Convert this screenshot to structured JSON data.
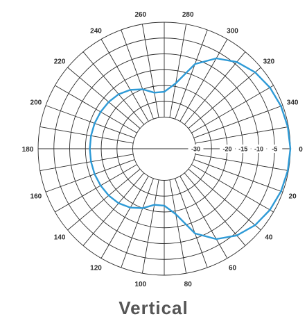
{
  "chart_data": {
    "type": "polar",
    "title": "Vertical",
    "angle_ticks": [
      "0",
      "20",
      "40",
      "60",
      "80",
      "100",
      "120",
      "140",
      "160",
      "180",
      "200",
      "220",
      "240",
      "260",
      "280",
      "300",
      "320",
      "340"
    ],
    "radial_ticks": [
      "-30",
      "-20",
      "-15",
      "-10",
      "-5"
    ],
    "radial_range_db": [
      -40,
      0
    ],
    "grid": true,
    "grid_angle_step_deg": 10,
    "series": [
      {
        "angles_deg": [
          0,
          10,
          20,
          30,
          40,
          50,
          60,
          70,
          80,
          90,
          100,
          110,
          120,
          130,
          140,
          150,
          160,
          170,
          180,
          190,
          200,
          210,
          220,
          230,
          240,
          250,
          260,
          270,
          280,
          290,
          300,
          310,
          320,
          330,
          340,
          350,
          360
        ],
        "values_db": [
          0,
          -0.2,
          -0.6,
          -1.3,
          -2.4,
          -4.2,
          -7,
          -11.5,
          -19,
          -22,
          -22,
          -20,
          -18.5,
          -17.5,
          -17,
          -16.7,
          -16.5,
          -16.4,
          -16.4,
          -16.4,
          -16.5,
          -16.7,
          -17,
          -17.5,
          -18.5,
          -20,
          -22,
          -22,
          -19,
          -11.5,
          -7,
          -4.2,
          -2.4,
          -1.3,
          -0.6,
          -0.2,
          0
        ]
      }
    ],
    "colors": {
      "trace": "#2e9ad6",
      "grid": "#2b2b2b",
      "title": "#555555"
    }
  }
}
